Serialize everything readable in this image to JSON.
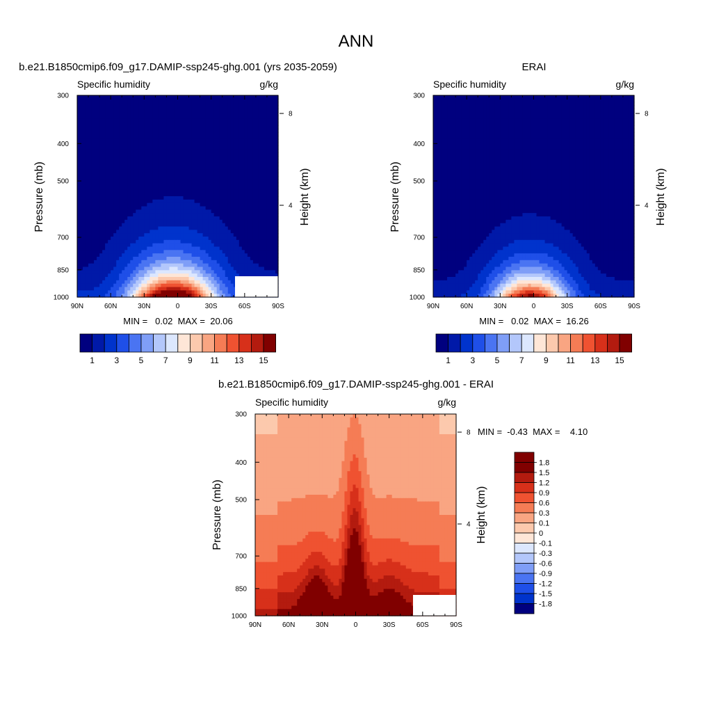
{
  "page_title": "ANN",
  "panels": [
    {
      "title": "b.e21.B1850cmip6.f09_g17.DAMIP-ssp245-ghg.001 (yrs 2035-2059)",
      "left_label": "Specific humidity",
      "right_label": "g/kg",
      "ylabel": "Pressure (mb)",
      "y2label": "Height (km)",
      "stats": "MIN =   0.02  MAX =  20.06"
    },
    {
      "title": "ERAI",
      "left_label": "Specific humidity",
      "right_label": "g/kg",
      "ylabel": "Pressure (mb)",
      "y2label": "Height (km)",
      "stats": "MIN =   0.02  MAX =  16.26"
    },
    {
      "title": "b.e21.B1850cmip6.f09_g17.DAMIP-ssp245-ghg.001 - ERAI",
      "left_label": "Specific humidity",
      "right_label": "g/kg",
      "ylabel": "Pressure (mb)",
      "y2label": "Height (km)",
      "stats": "MIN =  -0.43  MAX =    4.10"
    }
  ],
  "colors": {
    "abs_scale": [
      "#00007f",
      "#0019a8",
      "#0033cc",
      "#1f4fe8",
      "#4a74f2",
      "#7f9ef7",
      "#b3c7fb",
      "#dce7fe",
      "#fee6d7",
      "#fcc9ad",
      "#f9a582",
      "#f57c55",
      "#ef5231",
      "#d7301a",
      "#b31b0f",
      "#800000"
    ],
    "diff_scale": [
      "#00007f",
      "#0033cc",
      "#1f4fe8",
      "#4a74f2",
      "#7f9ef7",
      "#b3c7fb",
      "#dce7fe",
      "#fee6d7",
      "#fcc9ad",
      "#f9a582",
      "#f57c55",
      "#ef5231",
      "#d7301a",
      "#b31b0f",
      "#800000"
    ]
  },
  "chart_data": [
    {
      "type": "heatmap",
      "title": "b.e21.B1850cmip6.f09_g17.DAMIP-ssp245-ghg.001 (yrs 2035-2059)",
      "variable": "Specific humidity",
      "units": "g/kg",
      "x_ticks": [
        "90N",
        "60N",
        "30N",
        "0",
        "30S",
        "60S",
        "90S"
      ],
      "y_ticks": [
        "300",
        "400",
        "500",
        "700",
        "850",
        "1000"
      ],
      "y2_ticks": [
        "8",
        "4"
      ],
      "xlabel": "",
      "ylabel": "Pressure (mb)",
      "y2label": "Height (km)",
      "contour_levels": [
        1,
        2,
        3,
        4,
        5,
        6,
        7,
        8,
        9,
        10,
        11,
        12,
        13,
        14,
        15
      ],
      "colorbar_labels": [
        "1",
        "3",
        "5",
        "7",
        "9",
        "11",
        "13",
        "15"
      ],
      "min": 0.02,
      "max": 20.06,
      "field": {
        "peak": 20.06,
        "center_lat": 4,
        "lat_width": 34,
        "p_scale": 150,
        "lat_sharp": 0.0
      }
    },
    {
      "type": "heatmap",
      "title": "ERAI",
      "variable": "Specific humidity",
      "units": "g/kg",
      "x_ticks": [
        "90N",
        "60N",
        "30N",
        "0",
        "30S",
        "60S",
        "90S"
      ],
      "y_ticks": [
        "300",
        "400",
        "500",
        "700",
        "850",
        "1000"
      ],
      "y2_ticks": [
        "8",
        "4"
      ],
      "xlabel": "",
      "ylabel": "Pressure (mb)",
      "y2label": "Height (km)",
      "contour_levels": [
        1,
        2,
        3,
        4,
        5,
        6,
        7,
        8,
        9,
        10,
        11,
        12,
        13,
        14,
        15
      ],
      "colorbar_labels": [
        "1",
        "3",
        "5",
        "7",
        "9",
        "11",
        "13",
        "15"
      ],
      "min": 0.02,
      "max": 16.26,
      "field": {
        "peak": 16.26,
        "center_lat": 3,
        "lat_width": 30,
        "p_scale": 140,
        "lat_sharp": 0.0
      }
    },
    {
      "type": "heatmap",
      "title": "b.e21.B1850cmip6.f09_g17.DAMIP-ssp245-ghg.001 - ERAI",
      "variable": "Specific humidity",
      "units": "g/kg",
      "x_ticks": [
        "90N",
        "60N",
        "30N",
        "0",
        "30S",
        "60S",
        "90S"
      ],
      "y_ticks": [
        "300",
        "400",
        "500",
        "700",
        "850",
        "1000"
      ],
      "y2_ticks": [
        "8",
        "4"
      ],
      "xlabel": "",
      "ylabel": "Pressure (mb)",
      "y2label": "Height (km)",
      "contour_levels": [
        -1.8,
        -1.5,
        -1.2,
        -0.9,
        -0.6,
        -0.3,
        -0.1,
        0,
        0.1,
        0.3,
        0.6,
        0.9,
        1.2,
        1.5,
        1.8
      ],
      "colorbar_labels": [
        "1.8",
        "1.5",
        "1.2",
        "0.9",
        "0.6",
        "0.3",
        "0.1",
        "0",
        "-0.1",
        "-0.3",
        "-0.6",
        "-0.9",
        "-1.2",
        "-1.5",
        "-1.8"
      ],
      "min": -0.43,
      "max": 4.1
    }
  ]
}
